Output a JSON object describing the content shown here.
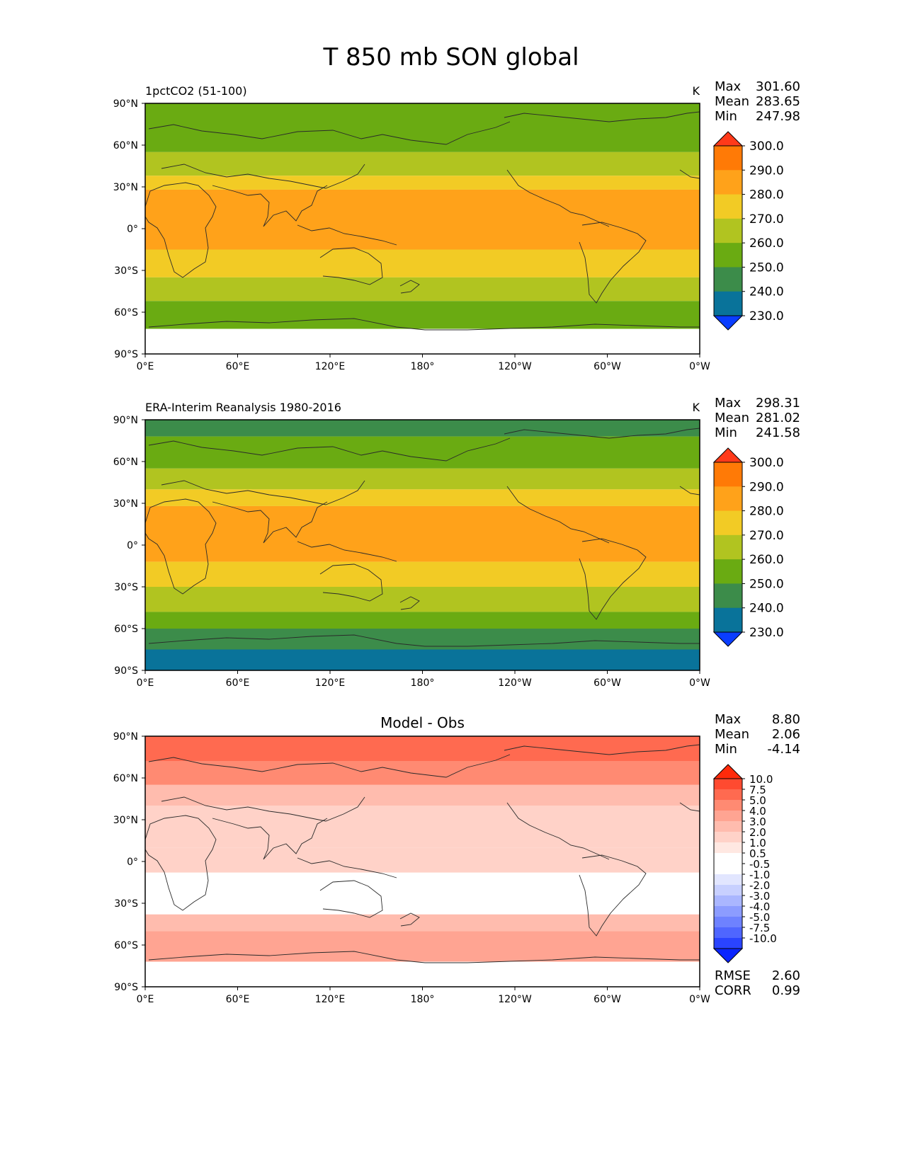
{
  "title": "T 850 mb SON global",
  "chart_data": [
    {
      "type": "heatmap",
      "panel": "model",
      "title": "1pctCO2 (51-100)",
      "units": "K",
      "stats": [
        {
          "label": "Max",
          "value": "301.60"
        },
        {
          "label": "Mean",
          "value": "283.65"
        },
        {
          "label": "Min",
          "value": "247.98"
        }
      ],
      "x_ticks": [
        "0°E",
        "60°E",
        "120°E",
        "180°",
        "120°W",
        "60°W",
        "0°W"
      ],
      "y_ticks": [
        "90°N",
        "60°N",
        "30°N",
        "0°",
        "30°S",
        "60°S",
        "90°S"
      ],
      "xlim": [
        0,
        360
      ],
      "ylim": [
        -90,
        90
      ],
      "colorbar": {
        "levels": [
          "300.0",
          "290.0",
          "280.0",
          "270.0",
          "260.0",
          "250.0",
          "240.0",
          "230.0"
        ],
        "colors": [
          "#ff3a1a",
          "#ff7a06",
          "#ffa21a",
          "#f2cb25",
          "#b1c420",
          "#6aab12",
          "#3c8c4a",
          "#09739a",
          "#0a3dff"
        ]
      },
      "bands": [
        {
          "lat_top": 90,
          "lat_bottom": 75,
          "value": 265
        },
        {
          "lat_top": 75,
          "lat_bottom": 55,
          "value": 265
        },
        {
          "lat_top": 55,
          "lat_bottom": 38,
          "value": 275
        },
        {
          "lat_top": 38,
          "lat_bottom": 28,
          "value": 285
        },
        {
          "lat_top": 28,
          "lat_bottom": -15,
          "value": 295
        },
        {
          "lat_top": -15,
          "lat_bottom": -35,
          "value": 285
        },
        {
          "lat_top": -35,
          "lat_bottom": -52,
          "value": 275
        },
        {
          "lat_top": -52,
          "lat_bottom": -72,
          "value": 265
        },
        {
          "lat_top": -72,
          "lat_bottom": -90,
          "value": null
        }
      ]
    },
    {
      "type": "heatmap",
      "panel": "obs",
      "title": "ERA-Interim Reanalysis 1980-2016",
      "units": "K",
      "stats": [
        {
          "label": "Max",
          "value": "298.31"
        },
        {
          "label": "Mean",
          "value": "281.02"
        },
        {
          "label": "Min",
          "value": "241.58"
        }
      ],
      "x_ticks": [
        "0°E",
        "60°E",
        "120°E",
        "180°",
        "120°W",
        "60°W",
        "0°W"
      ],
      "y_ticks": [
        "90°N",
        "60°N",
        "30°N",
        "0°",
        "30°S",
        "60°S",
        "90°S"
      ],
      "xlim": [
        0,
        360
      ],
      "ylim": [
        -90,
        90
      ],
      "colorbar": {
        "levels": [
          "300.0",
          "290.0",
          "280.0",
          "270.0",
          "260.0",
          "250.0",
          "240.0",
          "230.0"
        ],
        "colors": [
          "#ff3a1a",
          "#ff7a06",
          "#ffa21a",
          "#f2cb25",
          "#b1c420",
          "#6aab12",
          "#3c8c4a",
          "#09739a",
          "#0a3dff"
        ]
      },
      "bands": [
        {
          "lat_top": 90,
          "lat_bottom": 78,
          "value": 255
        },
        {
          "lat_top": 78,
          "lat_bottom": 55,
          "value": 265
        },
        {
          "lat_top": 55,
          "lat_bottom": 40,
          "value": 275
        },
        {
          "lat_top": 40,
          "lat_bottom": 28,
          "value": 285
        },
        {
          "lat_top": 28,
          "lat_bottom": -12,
          "value": 290
        },
        {
          "lat_top": -12,
          "lat_bottom": -30,
          "value": 285
        },
        {
          "lat_top": -30,
          "lat_bottom": -48,
          "value": 275
        },
        {
          "lat_top": -48,
          "lat_bottom": -60,
          "value": 265
        },
        {
          "lat_top": -60,
          "lat_bottom": -75,
          "value": 255
        },
        {
          "lat_top": -75,
          "lat_bottom": -90,
          "value": 245
        }
      ]
    },
    {
      "type": "heatmap",
      "panel": "diff",
      "title": "Model - Obs",
      "units": "",
      "stats": [
        {
          "label": "Max",
          "value": "8.80"
        },
        {
          "label": "Mean",
          "value": "2.06"
        },
        {
          "label": "Min",
          "value": "-4.14"
        }
      ],
      "metrics": [
        {
          "label": "RMSE",
          "value": "2.60"
        },
        {
          "label": "CORR",
          "value": "0.99"
        }
      ],
      "x_ticks": [
        "0°E",
        "60°E",
        "120°E",
        "180°",
        "120°W",
        "60°W",
        "0°W"
      ],
      "y_ticks": [
        "90°N",
        "60°N",
        "30°N",
        "0°",
        "30°S",
        "60°S",
        "90°S"
      ],
      "xlim": [
        0,
        360
      ],
      "ylim": [
        -90,
        90
      ],
      "colorbar": {
        "levels": [
          "10.0",
          "7.5",
          "5.0",
          "4.0",
          "3.0",
          "2.0",
          "1.0",
          "0.5",
          "-0.5",
          "-1.0",
          "-2.0",
          "-3.0",
          "-4.0",
          "-5.0",
          "-7.5",
          "-10.0"
        ],
        "colors": [
          "#ff2a0a",
          "#ff4a30",
          "#ff6a50",
          "#ff8a72",
          "#ffa492",
          "#ffbcae",
          "#ffd2c8",
          "#ffe8e2",
          "#ffffff",
          "#ffffff",
          "#e2e6ff",
          "#c8d0ff",
          "#aab6ff",
          "#8c9cff",
          "#6e82ff",
          "#4f66ff",
          "#2a44ff",
          "#0a24ff"
        ]
      },
      "bands": [
        {
          "lat_top": 90,
          "lat_bottom": 72,
          "value": 5.5
        },
        {
          "lat_top": 72,
          "lat_bottom": 55,
          "value": 4.5
        },
        {
          "lat_top": 55,
          "lat_bottom": 40,
          "value": 2.5
        },
        {
          "lat_top": 40,
          "lat_bottom": 10,
          "value": 1.5
        },
        {
          "lat_top": 10,
          "lat_bottom": -8,
          "value": 1.2
        },
        {
          "lat_top": -8,
          "lat_bottom": -38,
          "value": 0.2
        },
        {
          "lat_top": -38,
          "lat_bottom": -50,
          "value": 2.5
        },
        {
          "lat_top": -50,
          "lat_bottom": -72,
          "value": 3.5
        },
        {
          "lat_top": -72,
          "lat_bottom": -90,
          "value": null
        }
      ]
    }
  ]
}
